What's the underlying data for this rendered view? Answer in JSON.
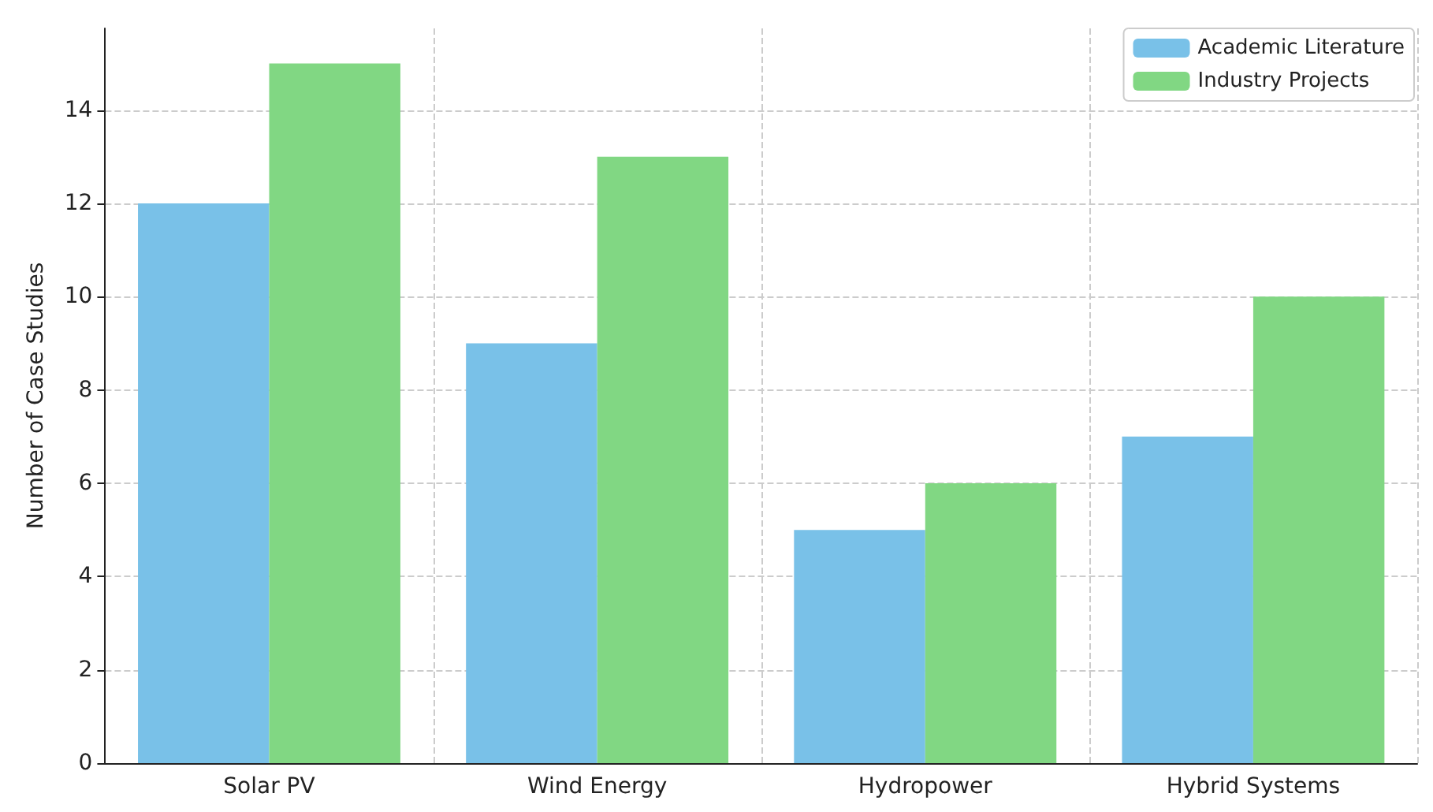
{
  "chart_data": {
    "type": "bar",
    "ylabel": "Number of Case Studies",
    "categories": [
      "Solar PV",
      "Wind Energy",
      "Hydropower",
      "Hybrid Systems"
    ],
    "series": [
      {
        "name": "Academic Literature",
        "color": "#79c1e8",
        "values": [
          12,
          9,
          5,
          7
        ]
      },
      {
        "name": "Industry Projects",
        "color": "#81d783",
        "values": [
          15,
          13,
          6,
          10
        ]
      }
    ],
    "ylim": [
      0,
      15.75
    ],
    "yticks": [
      0,
      2,
      4,
      6,
      8,
      10,
      12,
      14
    ],
    "grid": true,
    "legend": "top right"
  }
}
